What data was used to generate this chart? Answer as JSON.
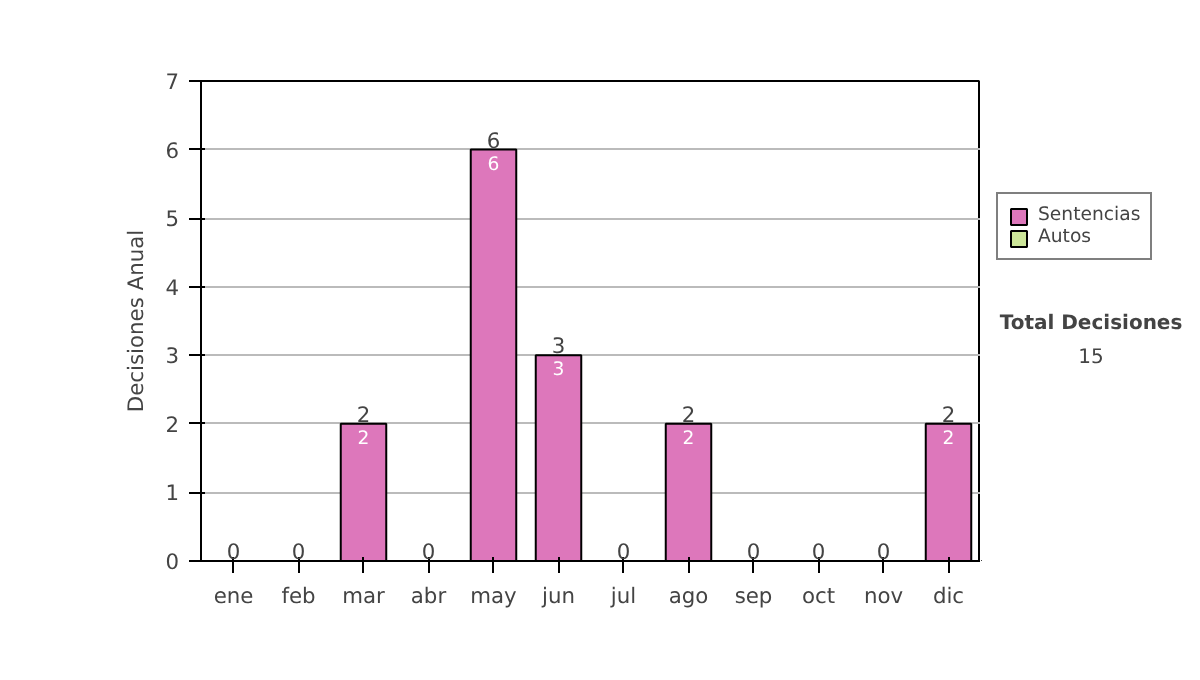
{
  "chart_data": {
    "type": "bar",
    "stacked": true,
    "ylabel": "Decisiones Anual",
    "categories": [
      "ene",
      "feb",
      "mar",
      "abr",
      "may",
      "jun",
      "jul",
      "ago",
      "sep",
      "oct",
      "nov",
      "dic"
    ],
    "series": [
      {
        "name": "Sentencias",
        "color": "#dd77bb",
        "values": [
          0,
          0,
          2,
          0,
          6,
          3,
          0,
          2,
          0,
          0,
          0,
          2
        ],
        "value_labels": [
          null,
          null,
          "2",
          null,
          "6",
          "3",
          null,
          "2",
          null,
          null,
          null,
          "2"
        ]
      },
      {
        "name": "Autos",
        "color": "#cce699",
        "values": [
          0,
          0,
          0,
          0,
          0,
          0,
          0,
          0,
          0,
          0,
          0,
          0
        ]
      }
    ],
    "totals": [
      "0",
      "0",
      "2",
      "0",
      "6",
      "3",
      "0",
      "2",
      "0",
      "0",
      "0",
      "2"
    ],
    "ylim": [
      0,
      7
    ],
    "yticks": [
      0,
      1,
      2,
      3,
      4,
      5,
      6,
      7
    ],
    "grid": "y",
    "legend": "right",
    "annotations": [
      "Total Decisiones",
      "15"
    ]
  }
}
